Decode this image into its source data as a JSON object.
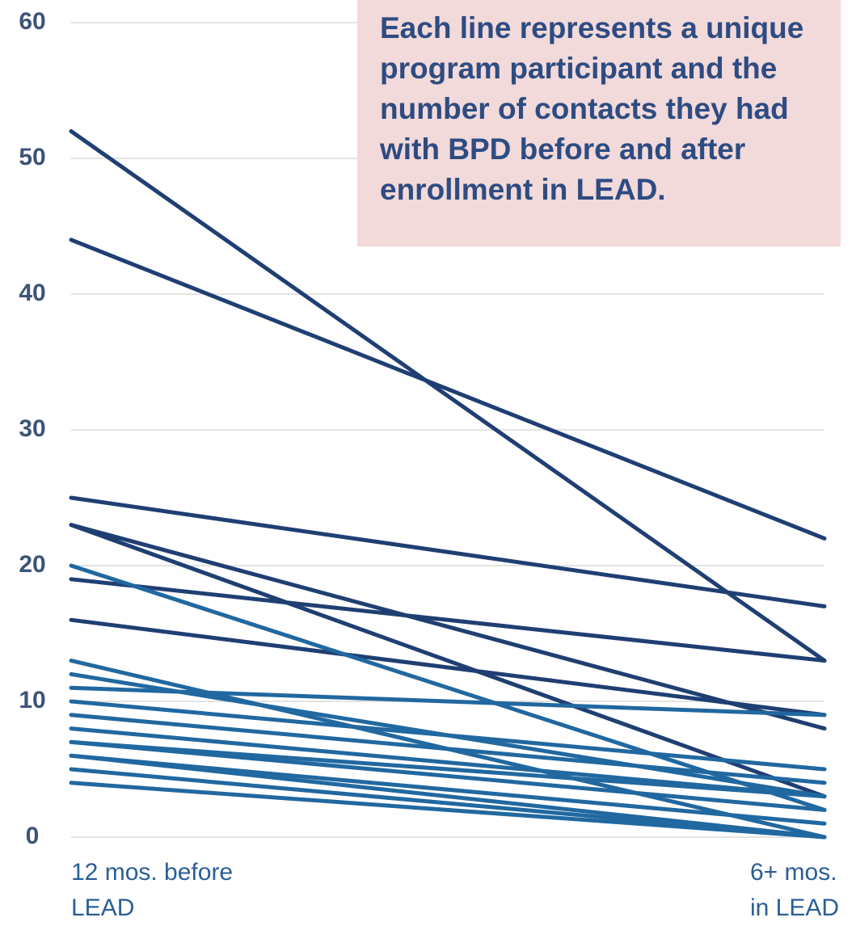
{
  "chart_data": {
    "type": "line",
    "annotation": "Each line represents a unique program participant and the number of contacts they had with BPD before and after enrollment in LEAD.",
    "categories": [
      "12 mos. before LEAD",
      "6+ mos. in LEAD"
    ],
    "ylim": [
      0,
      60
    ],
    "yticks": [
      0,
      10,
      20,
      30,
      40,
      50,
      60
    ],
    "grid": true,
    "series": [
      {
        "color": "#1f3f73",
        "values": [
          52,
          13
        ]
      },
      {
        "color": "#1f3f73",
        "values": [
          44,
          22
        ]
      },
      {
        "color": "#1f3f73",
        "values": [
          25,
          17
        ]
      },
      {
        "color": "#1f3f73",
        "values": [
          23,
          8
        ]
      },
      {
        "color": "#1f3f73",
        "values": [
          23,
          3
        ]
      },
      {
        "color": "#1f3f73",
        "values": [
          19,
          13
        ]
      },
      {
        "color": "#1f3f73",
        "values": [
          16,
          9
        ]
      },
      {
        "color": "#2168a0",
        "values": [
          20,
          2
        ]
      },
      {
        "color": "#2168a0",
        "values": [
          13,
          0
        ]
      },
      {
        "color": "#2168a0",
        "values": [
          12,
          3
        ]
      },
      {
        "color": "#2168a0",
        "values": [
          11,
          9
        ]
      },
      {
        "color": "#2168a0",
        "values": [
          10,
          5
        ]
      },
      {
        "color": "#2168a0",
        "values": [
          9,
          4
        ]
      },
      {
        "color": "#2168a0",
        "values": [
          8,
          3
        ]
      },
      {
        "color": "#2168a0",
        "values": [
          7,
          2
        ]
      },
      {
        "color": "#2168a0",
        "values": [
          7,
          3
        ]
      },
      {
        "color": "#2168a0",
        "values": [
          6,
          1
        ]
      },
      {
        "color": "#2168a0",
        "values": [
          6,
          0
        ]
      },
      {
        "color": "#2168a0",
        "values": [
          5,
          0
        ]
      },
      {
        "color": "#2168a0",
        "values": [
          4,
          0
        ]
      }
    ]
  }
}
